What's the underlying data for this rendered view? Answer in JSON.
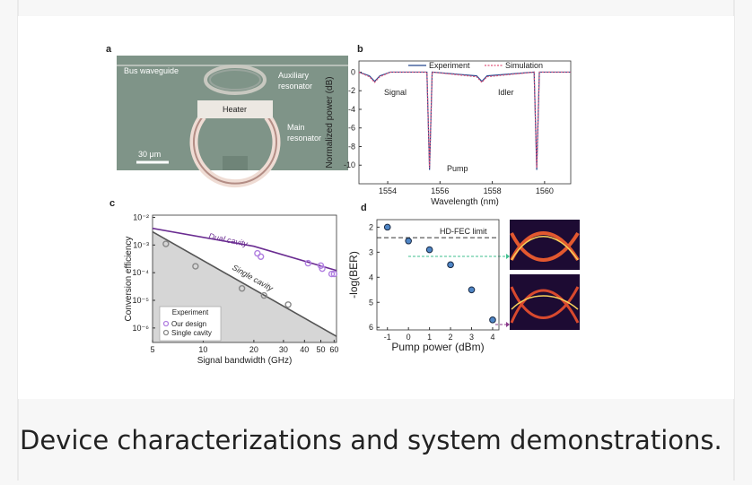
{
  "panel_a": {
    "label": "a",
    "bus": "Bus waveguide",
    "auxiliary": [
      "Auxiliary",
      "resonator"
    ],
    "heater": "Heater",
    "main": [
      "Main",
      "resonator"
    ],
    "scale": "30 μm"
  },
  "chart_data": [
    {
      "type": "line",
      "label": "b",
      "xlabel": "Wavelength (nm)",
      "ylabel": "Normalized power (dB)",
      "xlim": [
        1552.9,
        1561
      ],
      "ylim": [
        -12,
        1.2
      ],
      "xticks": [
        1554,
        1556,
        1558,
        1560
      ],
      "yticks": [
        0,
        -2,
        -4,
        -6,
        -8,
        -10
      ],
      "annotations": [
        "Signal",
        "Pump",
        "Idler"
      ],
      "series": [
        {
          "name": "Experiment",
          "color": "#24468e",
          "x": [
            1552.9,
            1553.3,
            1553.5,
            1553.7,
            1554.1,
            1555.5,
            1555.6,
            1555.7,
            1557.4,
            1557.6,
            1557.8,
            1559.6,
            1559.7,
            1559.8,
            1561
          ],
          "values": [
            0,
            -0.4,
            -1,
            -0.4,
            0,
            0,
            -10.5,
            0,
            -0.4,
            -1,
            -0.4,
            0,
            -10.5,
            0,
            0
          ]
        },
        {
          "name": "Simulation",
          "color": "#e0567a",
          "dashed": true,
          "x": [
            1552.9,
            1553.3,
            1553.5,
            1553.7,
            1554.1,
            1555.5,
            1555.6,
            1555.7,
            1557.4,
            1557.6,
            1557.8,
            1559.6,
            1559.7,
            1559.8,
            1561
          ],
          "values": [
            0,
            -0.5,
            -1.1,
            -0.5,
            0,
            0,
            -10.3,
            0,
            -0.5,
            -1.1,
            -0.5,
            0,
            -10.3,
            0,
            0
          ]
        }
      ]
    },
    {
      "type": "scatter",
      "label": "c",
      "xlabel": "Signal bandwidth (GHz)",
      "ylabel": "Conversion efficiency",
      "xlog": true,
      "ylog": true,
      "xlim": [
        5,
        62
      ],
      "ylim": [
        3e-07,
        0.012
      ],
      "xticks": [
        5,
        10,
        20,
        30,
        40,
        50,
        60
      ],
      "yticks": [
        {
          "value": 0.01,
          "label": "10⁻²"
        },
        {
          "value": 0.001,
          "label": "10⁻³"
        },
        {
          "value": 0.0001,
          "label": "10⁻⁴"
        },
        {
          "value": 1e-05,
          "label": "10⁻⁵"
        },
        {
          "value": 1e-06,
          "label": "10⁻⁶"
        }
      ],
      "legend_title": "Experiment",
      "series": [
        {
          "name": "Dual cavity",
          "style": "line",
          "color": "#6a2c91",
          "x": [
            5,
            20,
            62
          ],
          "values": [
            0.004,
            0.0009,
            0.00012
          ]
        },
        {
          "name": "Single cavity",
          "style": "area",
          "color": "#555555",
          "x": [
            5,
            62
          ],
          "values": [
            0.003,
            5e-07
          ]
        },
        {
          "name": "Our design",
          "style": "marker",
          "color": "#b07ee0",
          "x": [
            21,
            22,
            42,
            50,
            51,
            58,
            60
          ],
          "values": [
            0.0005,
            0.00038,
            0.00022,
            0.00018,
            0.00014,
            9e-05,
            9e-05
          ]
        },
        {
          "name": "Single cavity",
          "style": "marker",
          "color": "#888888",
          "x": [
            6,
            9,
            17,
            23,
            32
          ],
          "values": [
            0.0011,
            0.00017,
            2.7e-05,
            1.5e-05,
            7e-06
          ]
        }
      ]
    },
    {
      "type": "scatter",
      "label": "d",
      "xlabel": "Pump power (dBm)",
      "ylabel": "-log(BER)",
      "xlim": [
        -1.5,
        4.3
      ],
      "ylim": [
        6.1,
        1.7
      ],
      "xticks": [
        -1,
        0,
        1,
        2,
        3,
        4
      ],
      "yticks": [
        2,
        3,
        4,
        5,
        6
      ],
      "reference_line": {
        "value": 2.42,
        "label": "HD-FEC limit"
      },
      "color": "#4f86c6",
      "x": [
        -1,
        0,
        1,
        2,
        3,
        4
      ],
      "values": [
        2,
        2.55,
        2.9,
        3.5,
        4.5,
        5.7
      ]
    }
  ],
  "caption": "Device characterizations and system demonstrations."
}
